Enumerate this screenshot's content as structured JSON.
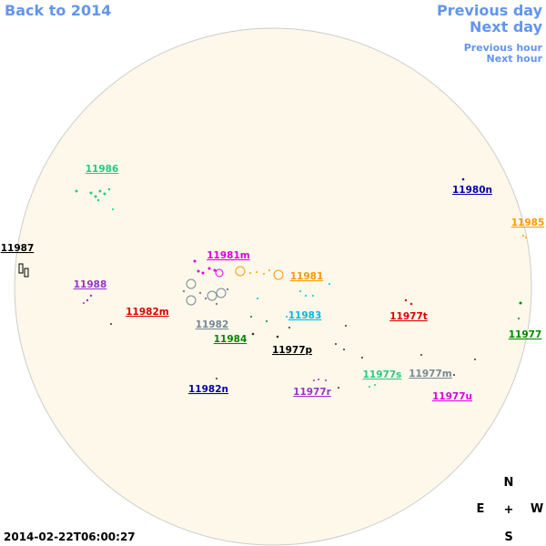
{
  "nav": {
    "back": "Back to 2014",
    "previous_day": "Previous day",
    "next_day": "Next day",
    "previous_hour": "Previous hour",
    "next_hour": "Next hour"
  },
  "timestamp": "2014-02-22T06:00:27",
  "compass": {
    "north": "N",
    "east": "E",
    "center": "+",
    "west": "W",
    "south": "S"
  },
  "regions": [
    {
      "label": "11986",
      "color": "#22cc88"
    },
    {
      "label": "11980n",
      "color": "#0000aa"
    },
    {
      "label": "11985",
      "color": "#ff9900"
    },
    {
      "label": "11987",
      "color": "#000000"
    },
    {
      "label": "11981m",
      "color": "#dd00dd"
    },
    {
      "label": "11981",
      "color": "#ff9900"
    },
    {
      "label": "11988",
      "color": "#9933cc"
    },
    {
      "label": "11982m",
      "color": "#dd0000"
    },
    {
      "label": "11983",
      "color": "#00bbdd"
    },
    {
      "label": "11977t",
      "color": "#dd0000"
    },
    {
      "label": "11982",
      "color": "#778899"
    },
    {
      "label": "11984",
      "color": "#008800"
    },
    {
      "label": "11977",
      "color": "#008800"
    },
    {
      "label": "11977p",
      "color": "#000000"
    },
    {
      "label": "11977s",
      "color": "#22cc88"
    },
    {
      "label": "11977m",
      "color": "#778899"
    },
    {
      "label": "11982n",
      "color": "#0000aa"
    },
    {
      "label": "11977r",
      "color": "#9933cc"
    },
    {
      "label": "11977u",
      "color": "#dd00dd"
    }
  ]
}
